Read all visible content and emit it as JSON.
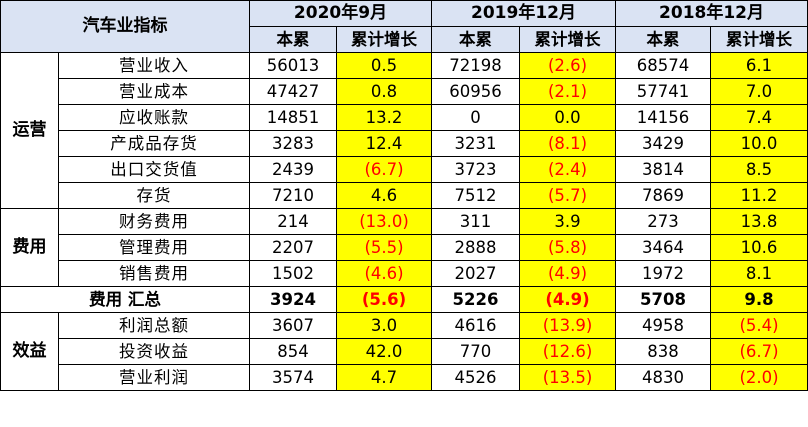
{
  "header": {
    "title": "汽车业指标",
    "periods": [
      "2020年9月",
      "2019年12月",
      "2018年12月"
    ],
    "sub_cols": [
      "本累",
      "累计增长"
    ]
  },
  "categories": {
    "operations": "运营",
    "expenses": "费用",
    "benefits": "效益"
  },
  "rows": [
    {
      "label": "营业收入",
      "v": [
        {
          "cum": "56013",
          "growth": "0.5",
          "neg": false
        },
        {
          "cum": "72198",
          "growth": "(2.6)",
          "neg": true
        },
        {
          "cum": "68574",
          "growth": "6.1",
          "neg": false
        }
      ]
    },
    {
      "label": "营业成本",
      "v": [
        {
          "cum": "47427",
          "growth": "0.8",
          "neg": false
        },
        {
          "cum": "60956",
          "growth": "(2.1)",
          "neg": true
        },
        {
          "cum": "57741",
          "growth": "7.0",
          "neg": false
        }
      ]
    },
    {
      "label": "应收账款",
      "v": [
        {
          "cum": "14851",
          "growth": "13.2",
          "neg": false
        },
        {
          "cum": "0",
          "growth": "0.0",
          "neg": false
        },
        {
          "cum": "14156",
          "growth": "7.4",
          "neg": false
        }
      ]
    },
    {
      "label": "产成品存货",
      "v": [
        {
          "cum": "3283",
          "growth": "12.4",
          "neg": false
        },
        {
          "cum": "3231",
          "growth": "(8.1)",
          "neg": true
        },
        {
          "cum": "3429",
          "growth": "10.0",
          "neg": false
        }
      ]
    },
    {
      "label": "出口交货值",
      "v": [
        {
          "cum": "2439",
          "growth": "(6.7)",
          "neg": true
        },
        {
          "cum": "3723",
          "growth": "(2.4)",
          "neg": true
        },
        {
          "cum": "3814",
          "growth": "8.5",
          "neg": false
        }
      ]
    },
    {
      "label": "存货",
      "v": [
        {
          "cum": "7210",
          "growth": "4.6",
          "neg": false
        },
        {
          "cum": "7512",
          "growth": "(5.7)",
          "neg": true
        },
        {
          "cum": "7869",
          "growth": "11.2",
          "neg": false
        }
      ]
    },
    {
      "label": "财务费用",
      "v": [
        {
          "cum": "214",
          "growth": "(13.0)",
          "neg": true
        },
        {
          "cum": "311",
          "growth": "3.9",
          "neg": false
        },
        {
          "cum": "273",
          "growth": "13.8",
          "neg": false
        }
      ]
    },
    {
      "label": "管理费用",
      "v": [
        {
          "cum": "2207",
          "growth": "(5.5)",
          "neg": true
        },
        {
          "cum": "2888",
          "growth": "(5.8)",
          "neg": true
        },
        {
          "cum": "3464",
          "growth": "10.6",
          "neg": false
        }
      ]
    },
    {
      "label": "销售费用",
      "v": [
        {
          "cum": "1502",
          "growth": "(4.6)",
          "neg": true
        },
        {
          "cum": "2027",
          "growth": "(4.9)",
          "neg": true
        },
        {
          "cum": "1972",
          "growth": "8.1",
          "neg": false
        }
      ]
    },
    {
      "label": "费用 汇总",
      "v": [
        {
          "cum": "3924",
          "growth": "(5.6)",
          "neg": true
        },
        {
          "cum": "5226",
          "growth": "(4.9)",
          "neg": true
        },
        {
          "cum": "5708",
          "growth": "9.8",
          "neg": false
        }
      ]
    },
    {
      "label": "利润总额",
      "v": [
        {
          "cum": "3607",
          "growth": "3.0",
          "neg": false
        },
        {
          "cum": "4616",
          "growth": "(13.9)",
          "neg": true
        },
        {
          "cum": "4958",
          "growth": "(5.4)",
          "neg": true
        }
      ]
    },
    {
      "label": "投资收益",
      "v": [
        {
          "cum": "854",
          "growth": "42.0",
          "neg": false
        },
        {
          "cum": "770",
          "growth": "(12.6)",
          "neg": true
        },
        {
          "cum": "838",
          "growth": "(6.7)",
          "neg": true
        }
      ]
    },
    {
      "label": "营业利润",
      "v": [
        {
          "cum": "3574",
          "growth": "4.7",
          "neg": false
        },
        {
          "cum": "4526",
          "growth": "(13.5)",
          "neg": true
        },
        {
          "cum": "4830",
          "growth": "(2.0)",
          "neg": true
        }
      ]
    }
  ],
  "colors": {
    "header_bg": "#dae3f3",
    "highlight": "#ffff00",
    "negative": "#ff0000"
  }
}
